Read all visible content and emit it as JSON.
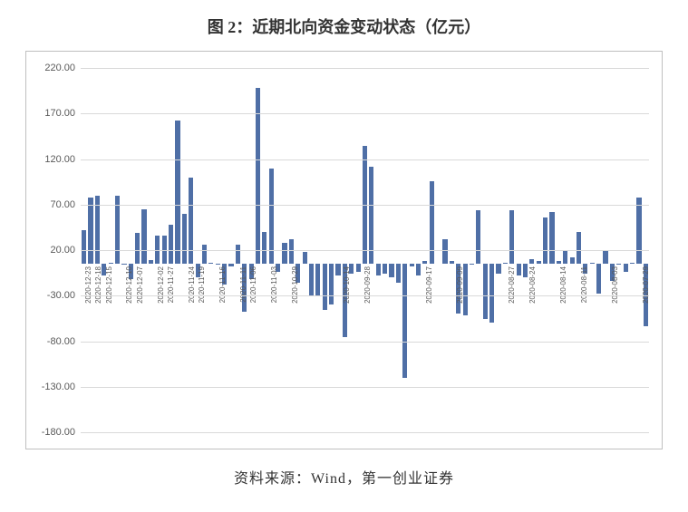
{
  "title": "图 2：近期北向资金变动状态（亿元）",
  "source": "资料来源：Wind，第一创业证券",
  "chart": {
    "type": "bar",
    "ylim": [
      -180,
      220
    ],
    "ytick_step": 50,
    "ytick_decimals": 2,
    "bar_color": "#4f6fa6",
    "grid_color": "#d9d9d9",
    "border_color": "#bfbfbf",
    "background_color": "#ffffff",
    "label_fontsize": 11,
    "label_rotation": -90,
    "baseline_value": 5,
    "categories_shown": [
      "2020-12-23",
      "2020-12-18",
      "2020-12-15",
      "",
      "2020-12-10",
      "2020-12-07",
      "",
      "2020-12-02",
      "2020-11-27",
      "",
      "2020-11-24",
      "2020-11-19",
      "",
      "2020-11-16",
      "",
      "2020-11-11",
      "2020-11-06",
      "",
      "2020-11-03",
      "",
      "2020-10-29",
      "",
      "",
      "",
      "",
      "2020-10-14",
      "",
      "2020-09-28",
      "",
      "",
      "",
      "",
      "",
      "2020-09-17",
      "",
      "",
      "2020-09-09",
      "",
      "",
      "",
      "",
      "2020-08-27",
      "",
      "2020-08-24",
      "",
      "",
      "2020-08-14",
      "",
      "2020-08-11",
      "",
      "",
      "2020-08-03",
      "",
      "",
      "2020-07-29"
    ],
    "values": [
      42,
      78,
      80,
      -8,
      6,
      80,
      4,
      -12,
      39,
      65,
      9,
      36,
      36,
      48,
      162,
      60,
      100,
      -10,
      26,
      6,
      4,
      -18,
      2,
      26,
      -48,
      -12,
      198,
      40,
      110,
      -4,
      28,
      32,
      -16,
      18,
      -30,
      -30,
      -46,
      -40,
      -8,
      -76,
      -6,
      -4,
      134,
      112,
      -8,
      -6,
      -10,
      -16,
      -120,
      2,
      -8,
      8,
      96,
      5,
      32,
      8,
      -50,
      -52,
      4,
      64,
      -56,
      -60,
      -6,
      6,
      64,
      -8,
      -10,
      10,
      8,
      56,
      62,
      8,
      20,
      12,
      40,
      -6,
      6,
      -28,
      20,
      -14,
      4,
      -4,
      6,
      78,
      -64
    ]
  }
}
